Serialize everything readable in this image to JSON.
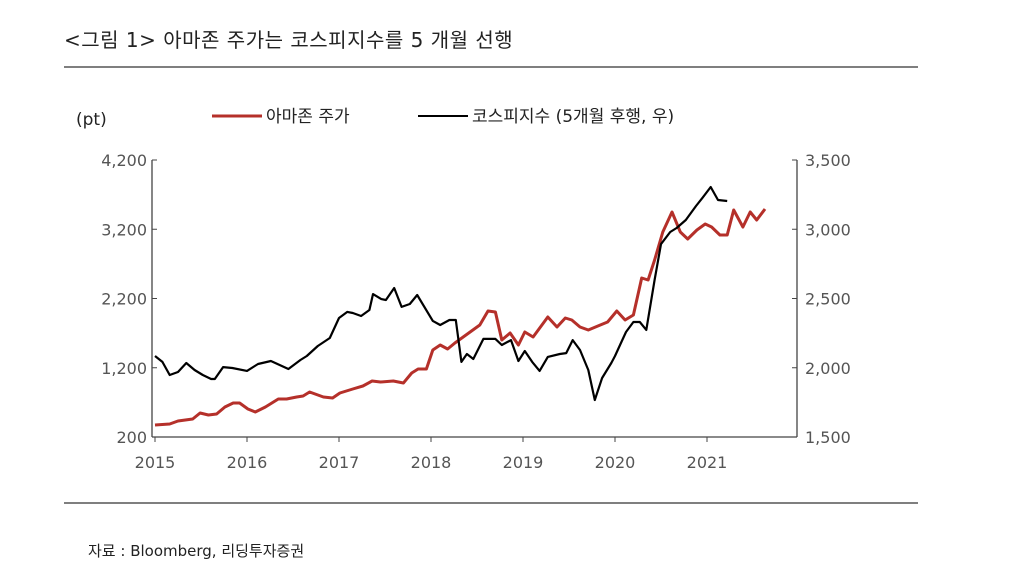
{
  "header": {
    "title": "<그림 1> 아마존 주가는 코스피지수를 5 개월 선행"
  },
  "footer": {
    "source": "자료 : Bloomberg, 리딩투자증권"
  },
  "chart_data": {
    "type": "line",
    "title": "<그림 1> 아마존 주가는 코스피지수를 5 개월 선행",
    "ylabel": "(pt)",
    "xlim": [
      2015,
      2022
    ],
    "ylim": [
      200,
      4200
    ],
    "y2lim": [
      1500,
      3500
    ],
    "x_ticks": [
      "2015",
      "2016",
      "2017",
      "2018",
      "2019",
      "2020",
      "2021"
    ],
    "y_ticks": [
      "200",
      "1,200",
      "2,200",
      "3,200",
      "4,200"
    ],
    "y2_ticks": [
      "1,500",
      "2,000",
      "2,500",
      "3,000",
      "3,500"
    ],
    "legend_position": "top",
    "grid": false,
    "colors": {
      "amazon": "#b5302a",
      "kospi": "#000000"
    },
    "series": [
      {
        "name": "아마존 주가",
        "axis": "left",
        "x": [
          2015.0,
          2015.16,
          2015.25,
          2015.41,
          2015.49,
          2015.58,
          2015.67,
          2015.76,
          2015.85,
          2015.92,
          2016.01,
          2016.09,
          2016.2,
          2016.34,
          2016.43,
          2016.54,
          2016.61,
          2016.68,
          2016.83,
          2016.93,
          2017.01,
          2017.15,
          2017.26,
          2017.36,
          2017.45,
          2017.59,
          2017.7,
          2017.79,
          2017.86,
          2017.95,
          2018.02,
          2018.1,
          2018.18,
          2018.26,
          2018.53,
          2018.62,
          2018.7,
          2018.77,
          2018.86,
          2018.95,
          2019.02,
          2019.11,
          2019.27,
          2019.37,
          2019.46,
          2019.53,
          2019.62,
          2019.71,
          2019.84,
          2019.92,
          2020.02,
          2020.11,
          2020.2,
          2020.29,
          2020.36,
          2020.43,
          2020.52,
          2020.62,
          2020.71,
          2020.79,
          2020.89,
          2020.98,
          2021.05,
          2021.14,
          2021.22,
          2021.29,
          2021.39,
          2021.47,
          2021.54,
          2021.63
        ],
        "y": [
          373,
          388,
          431,
          460,
          547,
          518,
          532,
          633,
          691,
          691,
          604,
          561,
          633,
          749,
          749,
          778,
          792,
          850,
          778,
          763,
          835,
          893,
          936,
          1009,
          994,
          1009,
          980,
          1124,
          1182,
          1182,
          1456,
          1528,
          1471,
          1557,
          1817,
          2019,
          2005,
          1601,
          1702,
          1528,
          1716,
          1644,
          1933,
          1788,
          1918,
          1889,
          1788,
          1745,
          1817,
          1861,
          2019,
          1889,
          1962,
          2496,
          2467,
          2756,
          3160,
          3449,
          3160,
          3059,
          3189,
          3276,
          3232,
          3117,
          3117,
          3478,
          3232,
          3449,
          3333,
          3492
        ]
      },
      {
        "name": "코스피지수 (5개월 후행, 우)",
        "axis": "right",
        "x": [
          2015.0,
          2015.08,
          2015.16,
          2015.25,
          2015.34,
          2015.43,
          2015.52,
          2015.61,
          2015.65,
          2015.74,
          2015.84,
          2016.0,
          2016.12,
          2016.26,
          2016.45,
          2016.58,
          2016.65,
          2016.77,
          2016.9,
          2017.0,
          2017.09,
          2017.15,
          2017.24,
          2017.33,
          2017.37,
          2017.46,
          2017.51,
          2017.6,
          2017.68,
          2017.77,
          2017.85,
          2018.02,
          2018.1,
          2018.2,
          2018.27,
          2018.33,
          2018.39,
          2018.46,
          2018.57,
          2018.7,
          2018.77,
          2018.87,
          2018.95,
          2019.02,
          2019.1,
          2019.18,
          2019.27,
          2019.4,
          2019.47,
          2019.54,
          2019.62,
          2019.71,
          2019.78,
          2019.86,
          2019.96,
          2020.0,
          2020.07,
          2020.12,
          2020.2,
          2020.27,
          2020.34,
          2020.43,
          2020.5,
          2020.6,
          2020.67,
          2020.77,
          2020.88,
          2020.95,
          2021.04,
          2021.12,
          2021.22
        ],
        "y": [
          2085,
          2042,
          1948,
          1969,
          2034,
          1984,
          1948,
          1919,
          1919,
          2005,
          1998,
          1977,
          2027,
          2049,
          1991,
          2056,
          2085,
          2157,
          2215,
          2359,
          2403,
          2395,
          2374,
          2417,
          2532,
          2496,
          2489,
          2576,
          2439,
          2460,
          2525,
          2338,
          2309,
          2345,
          2345,
          2042,
          2099,
          2063,
          2208,
          2208,
          2164,
          2200,
          2049,
          2121,
          2042,
          1977,
          2078,
          2099,
          2106,
          2200,
          2128,
          1984,
          1767,
          1926,
          2034,
          2085,
          2186,
          2258,
          2330,
          2330,
          2273,
          2634,
          2893,
          2980,
          3009,
          3067,
          3168,
          3226,
          3305,
          3211,
          3204
        ]
      }
    ]
  }
}
